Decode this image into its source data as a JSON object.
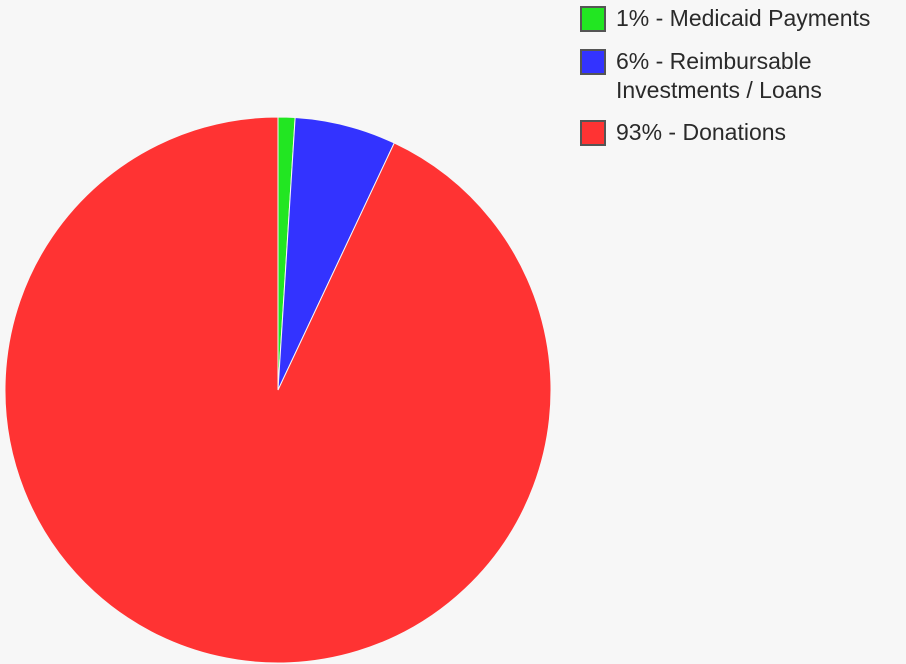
{
  "chart_data": {
    "type": "pie",
    "title": "",
    "start_angle_deg": 0,
    "direction": "clockwise",
    "slices": [
      {
        "label": "Medicaid Payments",
        "value": 1,
        "legend_text": "1% - Medicaid Payments",
        "color": "#22e622"
      },
      {
        "label": "Reimbursable Investments / Loans",
        "value": 6,
        "legend_text": "6% - Reimbursable Investments / Loans",
        "color": "#3333ff"
      },
      {
        "label": "Donations",
        "value": 93,
        "legend_text": "93% - Donations",
        "color": "#ff3333"
      }
    ],
    "legend_position": "top-right"
  }
}
